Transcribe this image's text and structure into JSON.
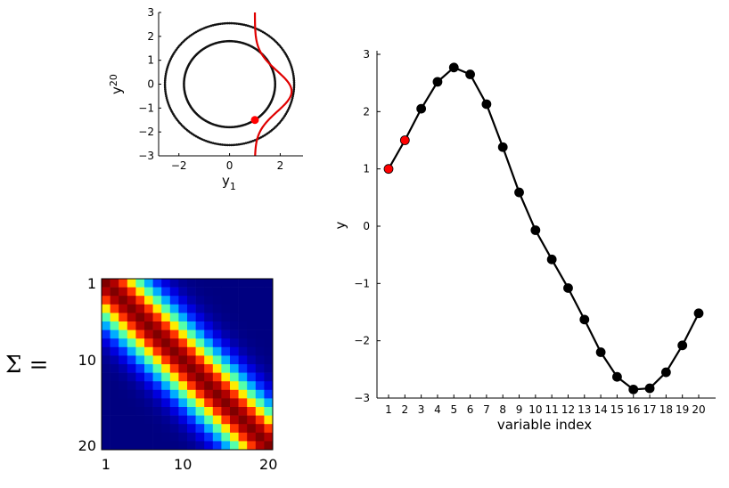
{
  "chart_data": [
    {
      "type": "scatter",
      "xlabel": "y",
      "xlabel_sub": "1",
      "ylabel": "y",
      "ylabel_sub": "20",
      "xlim": [
        -2.8,
        2.9
      ],
      "ylim": [
        -3,
        3
      ],
      "xticks": [
        "−2",
        "0",
        "2"
      ],
      "xtick_values": [
        -2,
        0,
        2
      ],
      "yticks": [
        "−3",
        "−2",
        "−1",
        "0",
        "1",
        "2",
        "3"
      ],
      "ytick_values": [
        -3,
        -2,
        -1,
        0,
        1,
        2,
        3
      ],
      "circles": [
        {
          "radius": 2.55
        },
        {
          "radius": 1.8
        }
      ],
      "curve": {
        "color": "#e00000",
        "baseline_x": 1.0,
        "amplitude": 1.45,
        "center_y": -0.3,
        "sigma": 0.85
      },
      "highlight": {
        "x": 1.0,
        "y": -1.5,
        "color": "#ff0000"
      },
      "grid": false
    },
    {
      "type": "line",
      "xlabel": "variable index",
      "ylabel": "y",
      "x": [
        1,
        2,
        3,
        4,
        5,
        6,
        7,
        8,
        9,
        10,
        11,
        12,
        13,
        14,
        15,
        16,
        17,
        18,
        19,
        20
      ],
      "xticks": [
        "1",
        "2",
        "3",
        "4",
        "5",
        "6",
        "7",
        "8",
        "9",
        "10",
        "11",
        "12",
        "13",
        "14",
        "15",
        "16",
        "17",
        "18",
        "19",
        "20"
      ],
      "values": [
        1.0,
        1.5,
        2.05,
        2.52,
        2.77,
        2.65,
        2.13,
        1.38,
        0.59,
        -0.07,
        -0.58,
        -1.08,
        -1.63,
        -2.2,
        -2.63,
        -2.85,
        -2.83,
        -2.55,
        -2.08,
        -1.52
      ],
      "highlight_indices": [
        1,
        2
      ],
      "highlight_color": "#ff0000",
      "ylim": [
        -3,
        3
      ],
      "yticks": [
        "−3",
        "−2",
        "−1",
        "0",
        "1",
        "2",
        "3"
      ],
      "ytick_values": [
        -3,
        -2,
        -1,
        0,
        1,
        2,
        3
      ],
      "grid": false
    },
    {
      "type": "heatmap",
      "label": "Σ =",
      "size": 20,
      "tick_labels": [
        "1",
        "10",
        "20"
      ],
      "tick_values": [
        1,
        10,
        20
      ],
      "colormap": "jet",
      "kernel_lengthscale": 3.2
    }
  ]
}
